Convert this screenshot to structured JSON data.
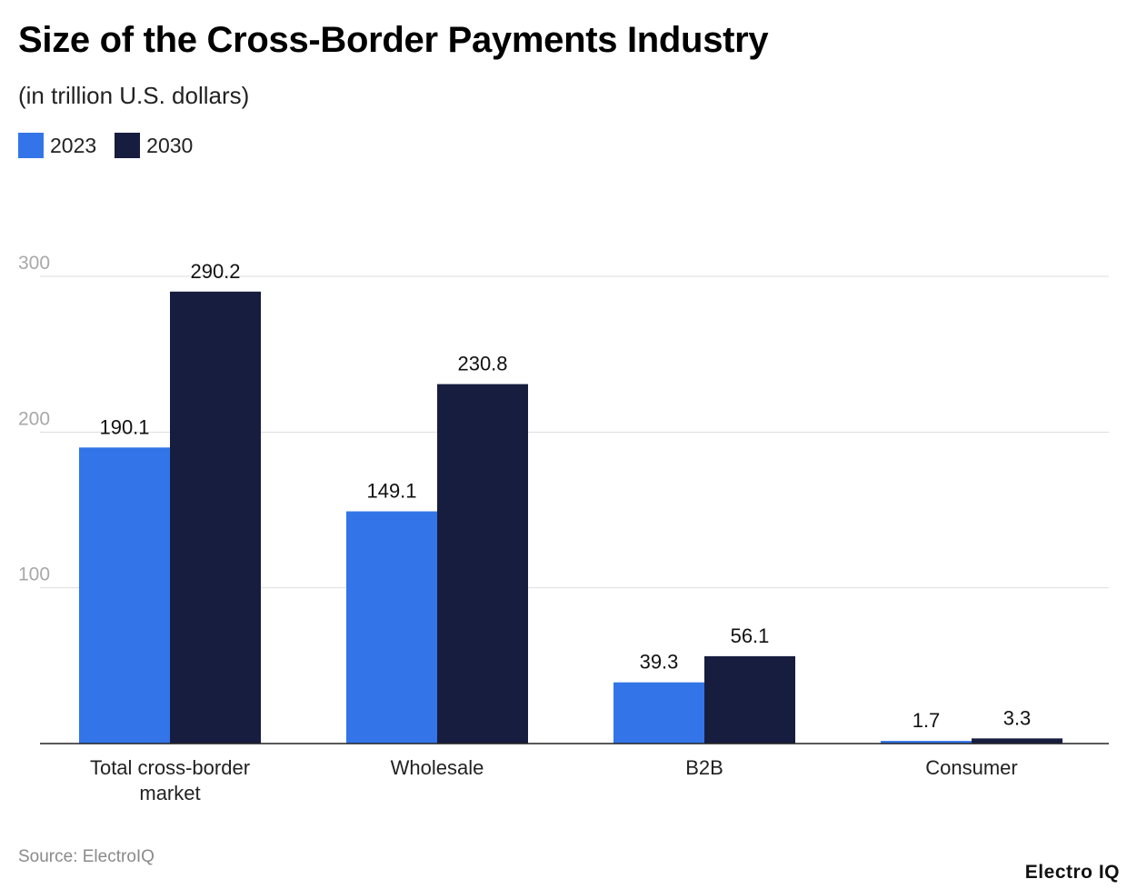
{
  "header": {
    "title": "Size of the Cross-Border Payments Industry",
    "subtitle": "(in trillion U.S. dollars)"
  },
  "footer": {
    "source": "Source: ElectroIQ",
    "brand": "Electro IQ"
  },
  "colors": {
    "series_2023": "#3375e8",
    "series_2030": "#171d3f",
    "grid": "#dddddd",
    "axis": "#222222",
    "tick_label": "#a8a8a8"
  },
  "chart_data": {
    "type": "bar",
    "title": "Size of the Cross-Border Payments Industry",
    "subtitle": "(in trillion U.S. dollars)",
    "categories": [
      "Total cross-border market",
      "Wholesale",
      "B2B",
      "Consumer"
    ],
    "category_lines": [
      [
        "Total cross-border",
        "market"
      ],
      [
        "Wholesale"
      ],
      [
        "B2B"
      ],
      [
        "Consumer"
      ]
    ],
    "series": [
      {
        "name": "2023",
        "values": [
          190.1,
          149.1,
          39.3,
          1.7
        ],
        "labels": [
          "190.1",
          "149.1",
          "39.3",
          "1.7"
        ]
      },
      {
        "name": "2030",
        "values": [
          290.2,
          230.8,
          56.1,
          3.3
        ],
        "labels": [
          "290.2",
          "230.8",
          "56.1",
          "3.3"
        ]
      }
    ],
    "ylim": [
      0,
      300
    ],
    "yticks": [
      100,
      200,
      300
    ],
    "grid": true,
    "legend": "top-left"
  }
}
